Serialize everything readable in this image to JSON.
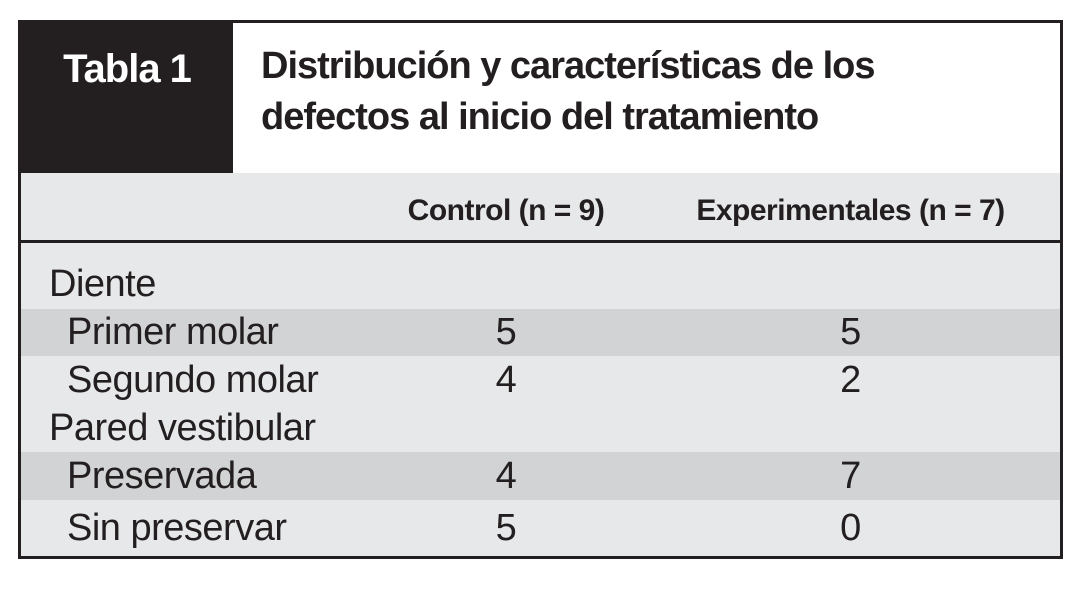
{
  "table": {
    "tag": "Tabla 1",
    "title": {
      "line1": "Distribución y características de los",
      "line2": "defectos al inicio del tratamiento"
    },
    "columns": {
      "control": "Control (n = 9)",
      "experimental": "Experimentales (n = 7)"
    },
    "rows": [
      {
        "label": "Diente",
        "type": "group",
        "control": "",
        "experimental": ""
      },
      {
        "label": "Primer molar",
        "type": "item",
        "control": "5",
        "experimental": "5"
      },
      {
        "label": "Segundo molar",
        "type": "item",
        "control": "4",
        "experimental": "2"
      },
      {
        "label": "Pared vestibular",
        "type": "group",
        "control": "",
        "experimental": ""
      },
      {
        "label": "Preservada",
        "type": "item",
        "control": "4",
        "experimental": "7"
      },
      {
        "label": "Sin preservar",
        "type": "item",
        "control": "5",
        "experimental": "0"
      }
    ],
    "colors": {
      "ink": "#231f20",
      "band_gray": "#e7e8e9",
      "stripe_gray": "#d2d3d4",
      "title_background": "#ffffff",
      "tag_text": "#ffffff"
    }
  },
  "chart_data": {
    "type": "table",
    "title": "Tabla 1 — Distribución y características de los defectos al inicio del tratamiento",
    "columns": [
      "",
      "Control (n = 9)",
      "Experimentales (n = 7)"
    ],
    "rows": [
      [
        "Diente",
        null,
        null
      ],
      [
        "Primer molar",
        5,
        5
      ],
      [
        "Segundo molar",
        4,
        2
      ],
      [
        "Pared vestibular",
        null,
        null
      ],
      [
        "Preservada",
        4,
        7
      ],
      [
        "Sin preservar",
        5,
        0
      ]
    ]
  }
}
